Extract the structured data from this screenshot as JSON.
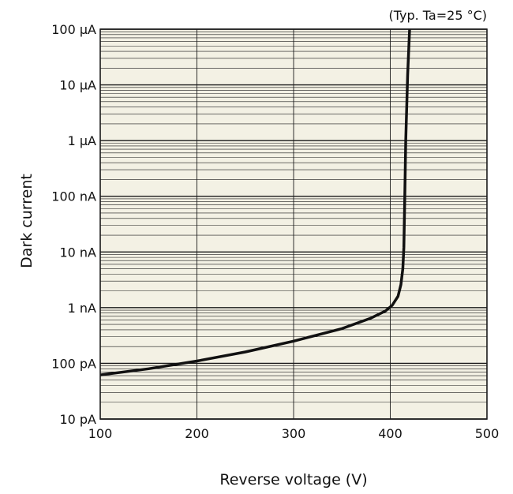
{
  "chart_data": {
    "type": "line",
    "annotation": "(Typ. Ta=25 °C)",
    "xlabel": "Reverse voltage (V)",
    "ylabel": "Dark current",
    "xlim": [
      100,
      500
    ],
    "x_ticks": [
      100,
      200,
      300,
      400,
      500
    ],
    "x_tick_labels": [
      "100",
      "200",
      "300",
      "400",
      "500"
    ],
    "y_scale": "log",
    "ylim": [
      1e-11,
      0.0001
    ],
    "y_ticks": [
      1e-11,
      1e-10,
      1e-09,
      1e-08,
      1e-07,
      1e-06,
      1e-05,
      0.0001
    ],
    "y_tick_labels": [
      "10 pA",
      "100 pA",
      "1 nA",
      "10 nA",
      "100 nA",
      "1 μA",
      "10 μA",
      "100 μA"
    ],
    "grid": true,
    "colors": {
      "plot_background": "#f3f1e4",
      "grid": "#1a1a1a",
      "curve": "#111111"
    },
    "series": [
      {
        "x": [
          100,
          150,
          200,
          250,
          300,
          350,
          380,
          395,
          402,
          408,
          411,
          413,
          414,
          415,
          416,
          418,
          420
        ],
        "y": [
          6.2e-11,
          8e-11,
          1.1e-10,
          1.6e-10,
          2.5e-10,
          4.2e-10,
          6.5e-10,
          8.7e-10,
          1.1e-09,
          1.6e-09,
          2.6e-09,
          5e-09,
          1.2e-08,
          1e-07,
          1e-06,
          1.5e-05,
          0.0001
        ]
      }
    ]
  }
}
